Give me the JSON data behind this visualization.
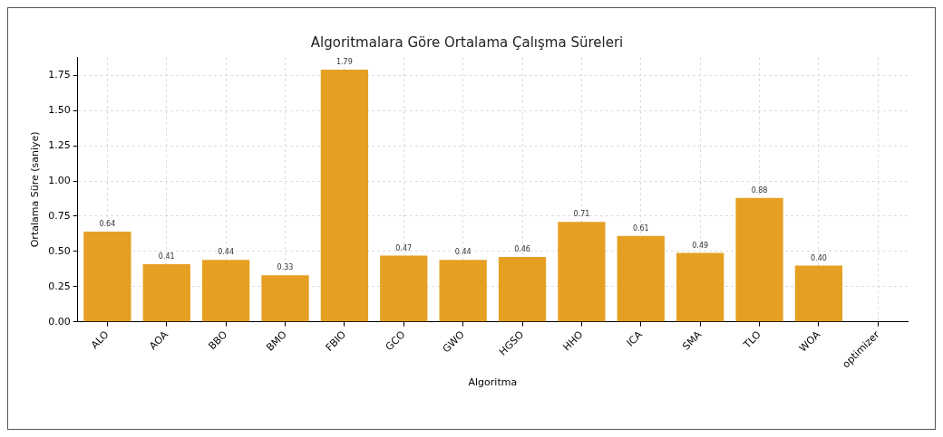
{
  "chart_data": {
    "type": "bar",
    "title": "Algoritmalara Göre Ortalama Çalışma Süreleri",
    "xlabel": "Algoritma",
    "ylabel": "Ortalama Süre (saniye)",
    "categories": [
      "ALO",
      "AOA",
      "BBO",
      "BMO",
      "FBIO",
      "GCO",
      "GWO",
      "HGSO",
      "HHO",
      "ICA",
      "SMA",
      "TLO",
      "WOA",
      "optimizer"
    ],
    "values": [
      0.64,
      0.41,
      0.44,
      0.33,
      1.79,
      0.47,
      0.44,
      0.46,
      0.71,
      0.61,
      0.49,
      0.88,
      0.4,
      null
    ],
    "value_labels": [
      "0.64",
      "0.41",
      "0.44",
      "0.33",
      "1.79",
      "0.47",
      "0.44",
      "0.46",
      "0.71",
      "0.61",
      "0.49",
      "0.88",
      "0.40",
      null
    ],
    "color": "#e5a024",
    "ylim": [
      0,
      1.88
    ],
    "yticks": [
      {
        "value": 0,
        "label": "0.00"
      },
      {
        "value": 0.25,
        "label": "0.25"
      },
      {
        "value": 0.5,
        "label": "0.50"
      },
      {
        "value": 0.75,
        "label": "0.75"
      },
      {
        "value": 1,
        "label": "1.00"
      },
      {
        "value": 1.25,
        "label": "1.25"
      },
      {
        "value": 1.5,
        "label": "1.50"
      },
      {
        "value": 1.75,
        "label": "1.75"
      }
    ],
    "grid": true
  }
}
